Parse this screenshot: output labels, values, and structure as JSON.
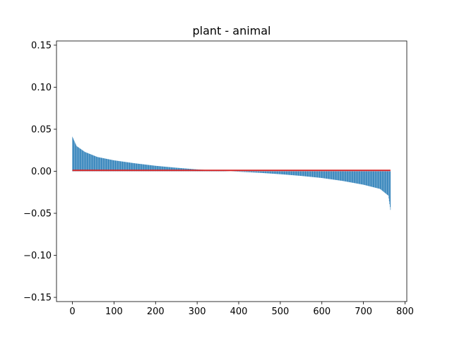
{
  "chart_data": {
    "type": "bar",
    "title": "plant - animal",
    "xlabel": "",
    "ylabel": "",
    "xlim": [
      -38.3,
      804.3
    ],
    "ylim": [
      -0.155,
      0.155
    ],
    "xticks": [
      0,
      100,
      200,
      300,
      400,
      500,
      600,
      700,
      800
    ],
    "yticks": [
      -0.15,
      -0.1,
      -0.05,
      0.0,
      0.05,
      0.1,
      0.15
    ],
    "xtick_labels": [
      "0",
      "100",
      "200",
      "300",
      "400",
      "500",
      "600",
      "700",
      "800"
    ],
    "ytick_labels": [
      "−0.15",
      "−0.10",
      "−0.05",
      "0.00",
      "0.05",
      "0.10",
      "0.15"
    ],
    "bar_color": "#1f77b4",
    "baseline_color": "#d62728",
    "grid": false,
    "n_bars": 766,
    "sorted_profile": {
      "x": [
        0,
        10,
        30,
        60,
        100,
        150,
        200,
        250,
        300,
        350,
        400,
        450,
        500,
        550,
        600,
        650,
        700,
        740,
        760,
        765
      ],
      "y": [
        0.041,
        0.03,
        0.023,
        0.017,
        0.013,
        0.0095,
        0.0065,
        0.0042,
        0.0022,
        0.0008,
        -0.0005,
        -0.0018,
        -0.0035,
        -0.0055,
        -0.008,
        -0.0115,
        -0.016,
        -0.021,
        -0.029,
        -0.046
      ]
    },
    "baseline": {
      "x": [
        0,
        765
      ],
      "y": 0.001
    }
  }
}
